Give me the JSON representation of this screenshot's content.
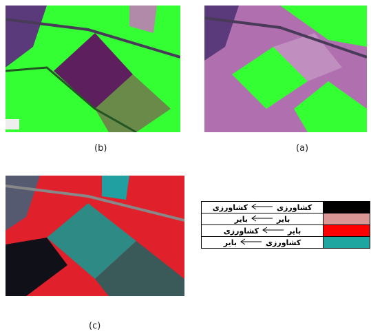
{
  "panels": [
    {
      "label": "(b)"
    },
    {
      "label": "(a)"
    },
    {
      "label": "(c)"
    }
  ],
  "legend": {
    "rows": [
      {
        "from": "کشاورزی",
        "to": "کشاورزی",
        "color": "#000000"
      },
      {
        "from": "بایر",
        "to": "بایر",
        "color": "#d99694"
      },
      {
        "from": "بایر",
        "to": "کشاورزی",
        "color": "#ff0000"
      },
      {
        "from": "کشاورزی",
        "to": "بایر",
        "color": "#1fa6a0"
      }
    ]
  }
}
